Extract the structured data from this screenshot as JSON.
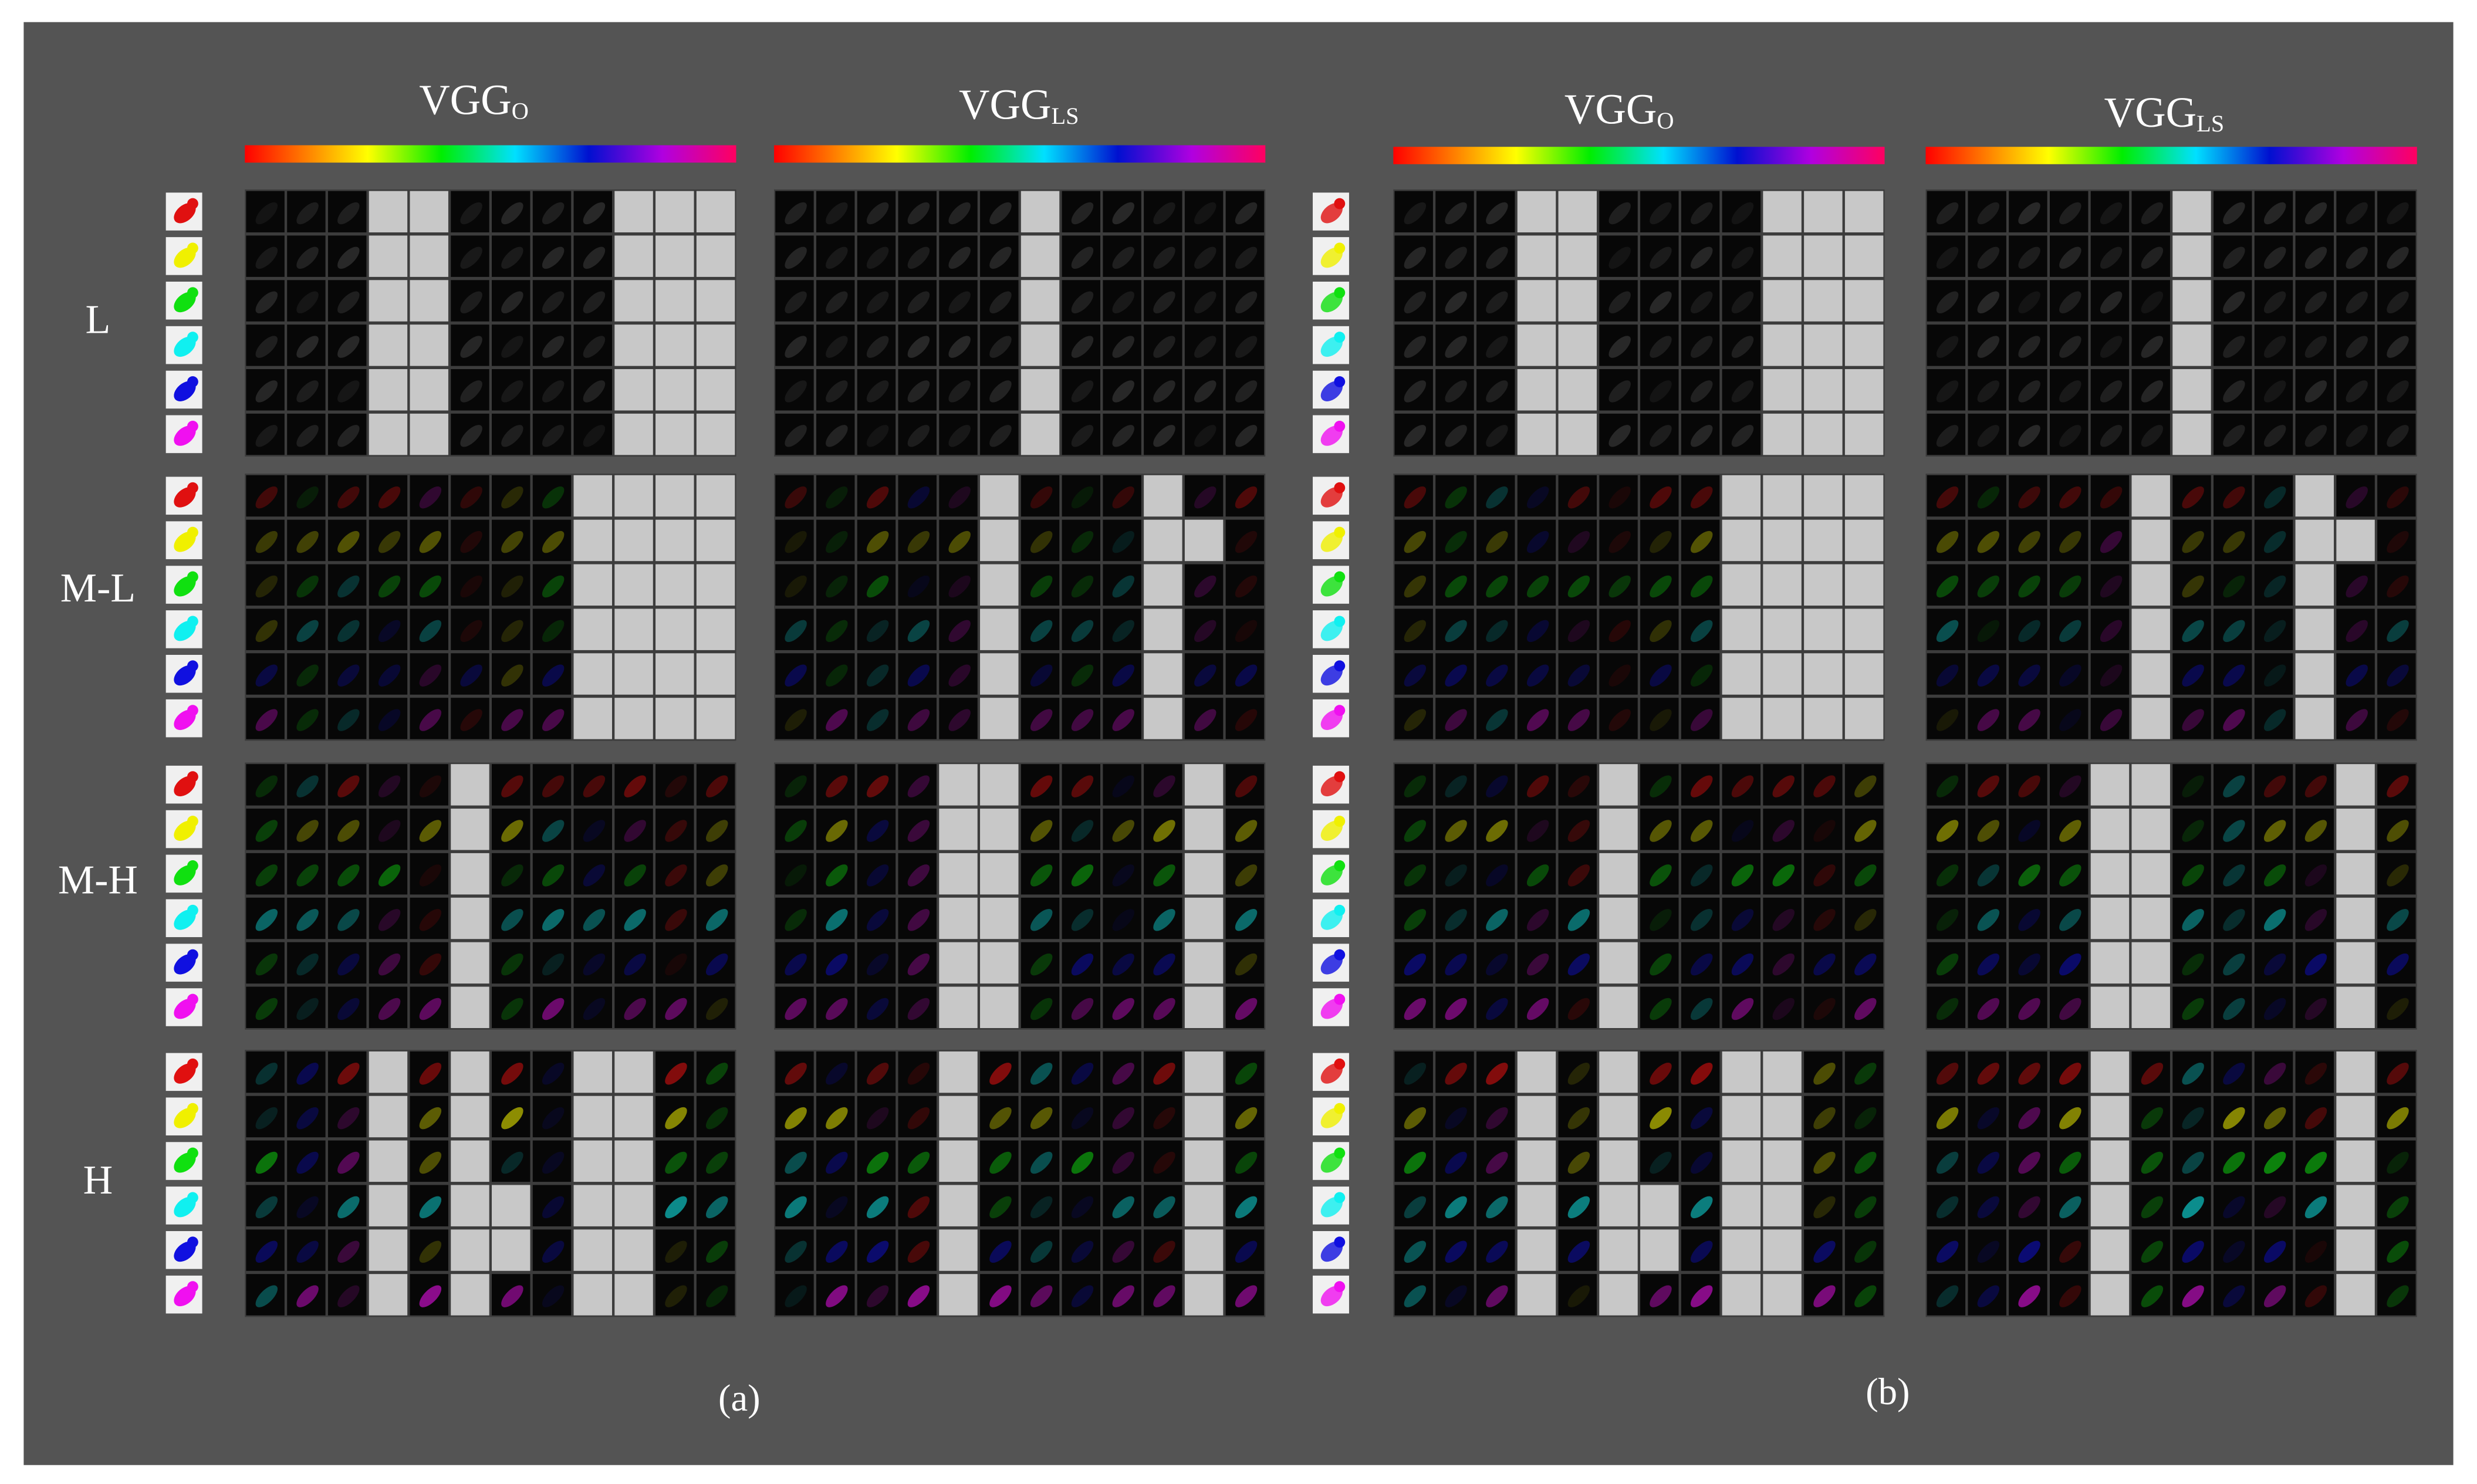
{
  "panels": [
    {
      "caption": "(a)",
      "columns": [
        {
          "title": "VGG",
          "sub": "O"
        },
        {
          "title": "VGG",
          "sub": "LS"
        }
      ]
    },
    {
      "caption": "(b)",
      "columns": [
        {
          "title": "VGG",
          "sub": "O"
        },
        {
          "title": "VGG",
          "sub": "LS"
        }
      ]
    }
  ],
  "row_labels": [
    "L",
    "M-L",
    "M-H",
    "H"
  ]
}
